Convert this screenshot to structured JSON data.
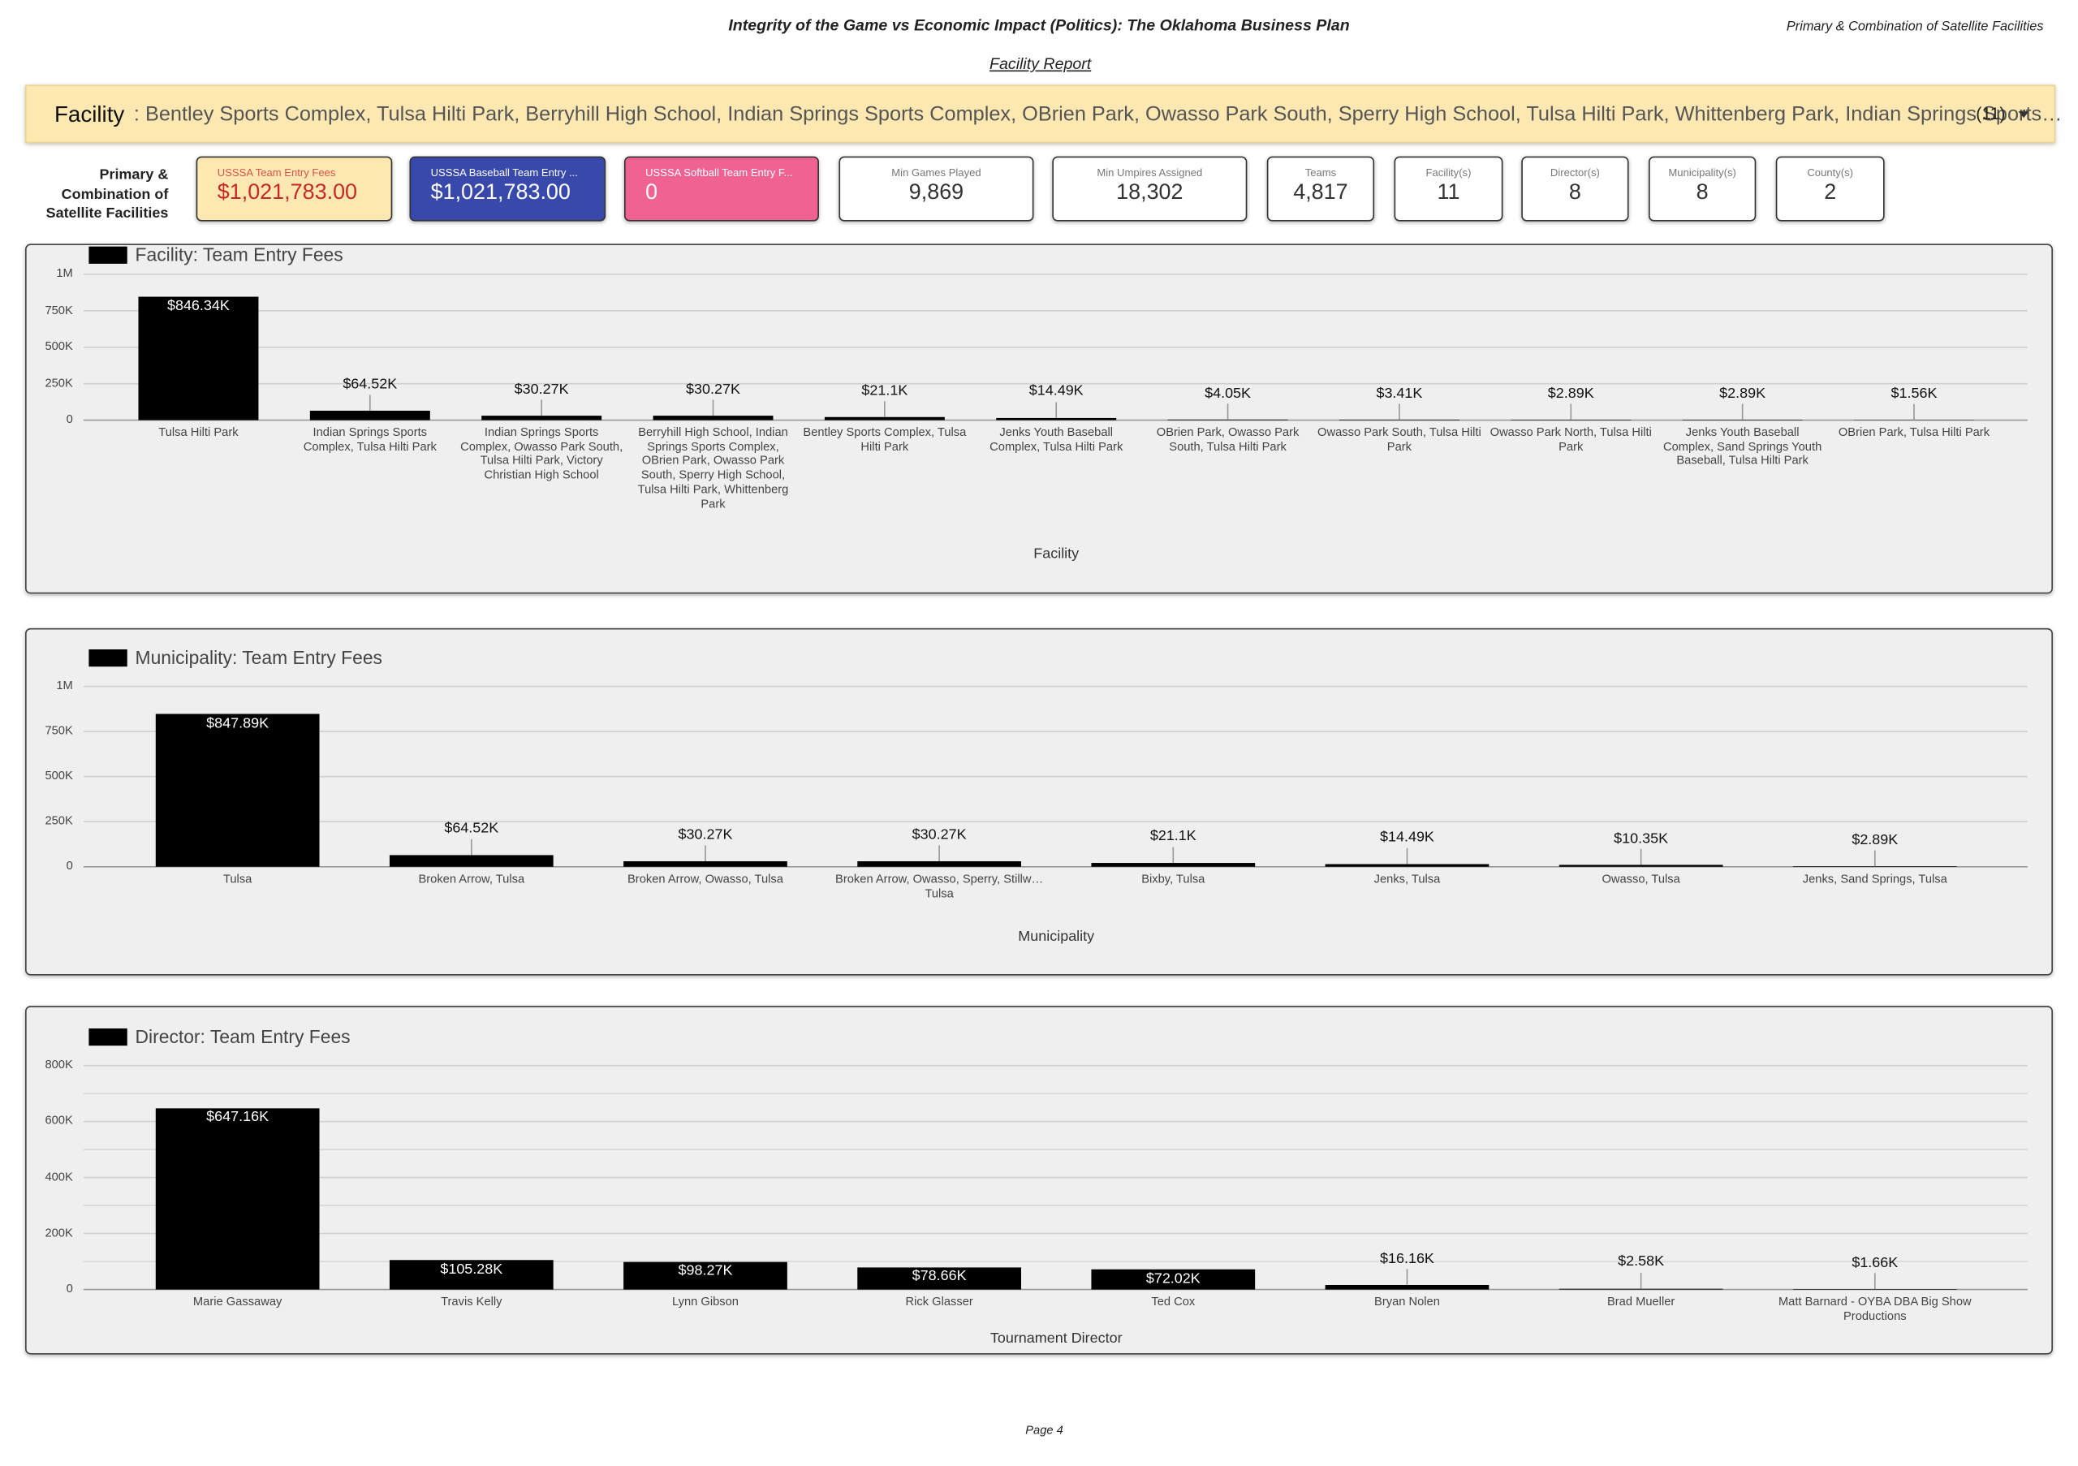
{
  "header": {
    "title": "Integrity of the Game vs Economic Impact (Politics): The Oklahoma Business Plan",
    "subtitle": "Primary & Combination of Satellite Facilities",
    "report": "Facility Report",
    "page": "Page 4"
  },
  "filter": {
    "label": "Facility",
    "value": ": Bentley Sports Complex, Tulsa Hilti Park, Berryhill High School, Indian Springs Sports Complex, OBrien Park, Owasso Park South, Sperry High School, Tulsa Hilti Park, Whittenberg Park, Indian Springs Sports…",
    "count": "(11)"
  },
  "kpi": {
    "heading": "Primary & Combination of Satellite Facilities",
    "cards": [
      {
        "label": "USSSA Team Entry Fees",
        "value": "$1,021,783.00"
      },
      {
        "label": "USSSA Baseball Team Entry ...",
        "value": "$1,021,783.00"
      },
      {
        "label": "USSSA Softball Team Entry F...",
        "value": "0"
      },
      {
        "label": "Min Games Played",
        "value": "9,869"
      },
      {
        "label": "Min Umpires Assigned",
        "value": "18,302"
      },
      {
        "label": "Teams",
        "value": "4,817"
      },
      {
        "label": "Facility(s)",
        "value": "11"
      },
      {
        "label": "Director(s)",
        "value": "8"
      },
      {
        "label": "Municipality(s)",
        "value": "8"
      },
      {
        "label": "County(s)",
        "value": "2"
      }
    ]
  },
  "chart_data": [
    {
      "type": "bar",
      "x_label": "Facility",
      "categories": [
        "Tulsa Hilti Park",
        "Indian Springs Sports Complex, Tulsa Hilti Park",
        "Indian Springs Sports Complex, Owasso Park South, Tulsa Hilti Park, Victory Christian High School",
        "Berryhill High School, Indian Springs Sports Complex, OBrien Park, Owasso Park South, Sperry High School, Tulsa Hilti Park, Whittenberg Park",
        "Bentley Sports Complex, Tulsa Hilti Park",
        "Jenks Youth Baseball Complex, Tulsa Hilti Park",
        "OBrien Park, Owasso Park South, Tulsa Hilti Park",
        "Owasso Park South, Tulsa Hilti Park",
        "Owasso Park North, Tulsa Hilti Park",
        "Jenks Youth Baseball Complex, Sand Springs Youth Baseball, Tulsa Hilti Park",
        "OBrien Park, Tulsa Hilti Park"
      ],
      "series": [
        {
          "name": "Facility: Team Entry Fees",
          "color": "#000000",
          "values": [
            846340,
            64520,
            30270,
            30270,
            21100,
            14490,
            4050,
            3410,
            2890,
            2890,
            1560
          ],
          "value_labels": [
            "$846.34K",
            "$64.52K",
            "$30.27K",
            "$30.27K",
            "$21.1K",
            "$14.49K",
            "$4.05K",
            "$3.41K",
            "$2.89K",
            "$2.89K",
            "$1.56K"
          ]
        }
      ],
      "ylim": [
        0,
        1000000
      ],
      "yticks": [
        0,
        {
          "value": 250000,
          "label": "250K"
        },
        {
          "value": 500000,
          "label": "500K"
        },
        {
          "value": 750000,
          "label": "750K"
        },
        {
          "value": 1000000,
          "label": "1M"
        }
      ],
      "grid": true
    },
    {
      "type": "bar",
      "x_label": "Municipality",
      "categories": [
        "Tulsa",
        "Broken Arrow, Tulsa",
        "Broken Arrow, Owasso, Tulsa",
        "Broken Arrow, Owasso, Sperry, Stillw… Tulsa",
        "Bixby, Tulsa",
        "Jenks, Tulsa",
        "Owasso, Tulsa",
        "Jenks, Sand Springs, Tulsa"
      ],
      "series": [
        {
          "name": "Municipality: Team Entry Fees",
          "color": "#000000",
          "values": [
            847890,
            64520,
            30270,
            30270,
            21100,
            14490,
            10350,
            2890
          ],
          "value_labels": [
            "$847.89K",
            "$64.52K",
            "$30.27K",
            "$30.27K",
            "$21.1K",
            "$14.49K",
            "$10.35K",
            "$2.89K"
          ]
        }
      ],
      "ylim": [
        0,
        1000000
      ],
      "yticks": [
        0,
        {
          "value": 250000,
          "label": "250K"
        },
        {
          "value": 500000,
          "label": "500K"
        },
        {
          "value": 750000,
          "label": "750K"
        },
        {
          "value": 1000000,
          "label": "1M"
        }
      ],
      "grid": true
    },
    {
      "type": "bar",
      "x_label": "Tournament Director",
      "categories": [
        "Marie Gassaway",
        "Travis Kelly",
        "Lynn Gibson",
        "Rick Glasser",
        "Ted Cox",
        "Bryan Nolen",
        "Brad Mueller",
        "Matt Barnard - OYBA DBA Big Show Productions"
      ],
      "series": [
        {
          "name": "Director: Team Entry Fees",
          "color": "#000000",
          "values": [
            647160,
            105280,
            98270,
            78660,
            72020,
            16160,
            2580,
            1660
          ],
          "value_labels": [
            "$647.16K",
            "$105.28K",
            "$98.27K",
            "$78.66K",
            "$72.02K",
            "$16.16K",
            "$2.58K",
            "$1.66K"
          ]
        }
      ],
      "ylim": [
        0,
        800000
      ],
      "yticks": [
        0,
        {
          "value": 200000,
          "label": "200K"
        },
        {
          "value": 400000,
          "label": "400K"
        },
        {
          "value": 600000,
          "label": "600K"
        },
        {
          "value": 800000,
          "label": "800K"
        }
      ],
      "minor_gridlines": [
        100000,
        300000,
        500000,
        700000
      ],
      "grid": true
    }
  ]
}
